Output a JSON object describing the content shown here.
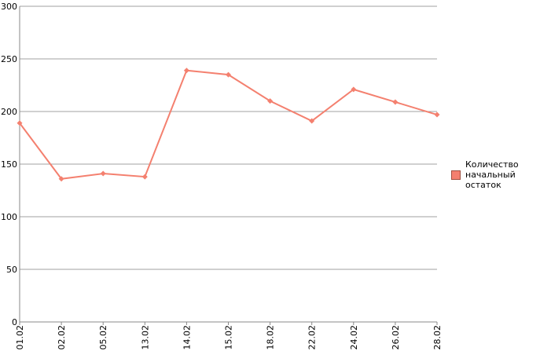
{
  "chart_data": {
    "type": "line",
    "categories": [
      "01.02",
      "02.02",
      "05.02",
      "13.02",
      "14.02",
      "15.02",
      "18.02",
      "22.02",
      "24.02",
      "26.02",
      "28.02"
    ],
    "series": [
      {
        "name": "Количество начальный остаток",
        "color": "#f4806f",
        "values": [
          189,
          136,
          141,
          138,
          239,
          235,
          210,
          191,
          221,
          209,
          197
        ]
      }
    ],
    "ylim": [
      0,
      300
    ],
    "yticks": [
      0,
      50,
      100,
      150,
      200,
      250,
      300
    ],
    "grid": true,
    "legend": "right"
  }
}
